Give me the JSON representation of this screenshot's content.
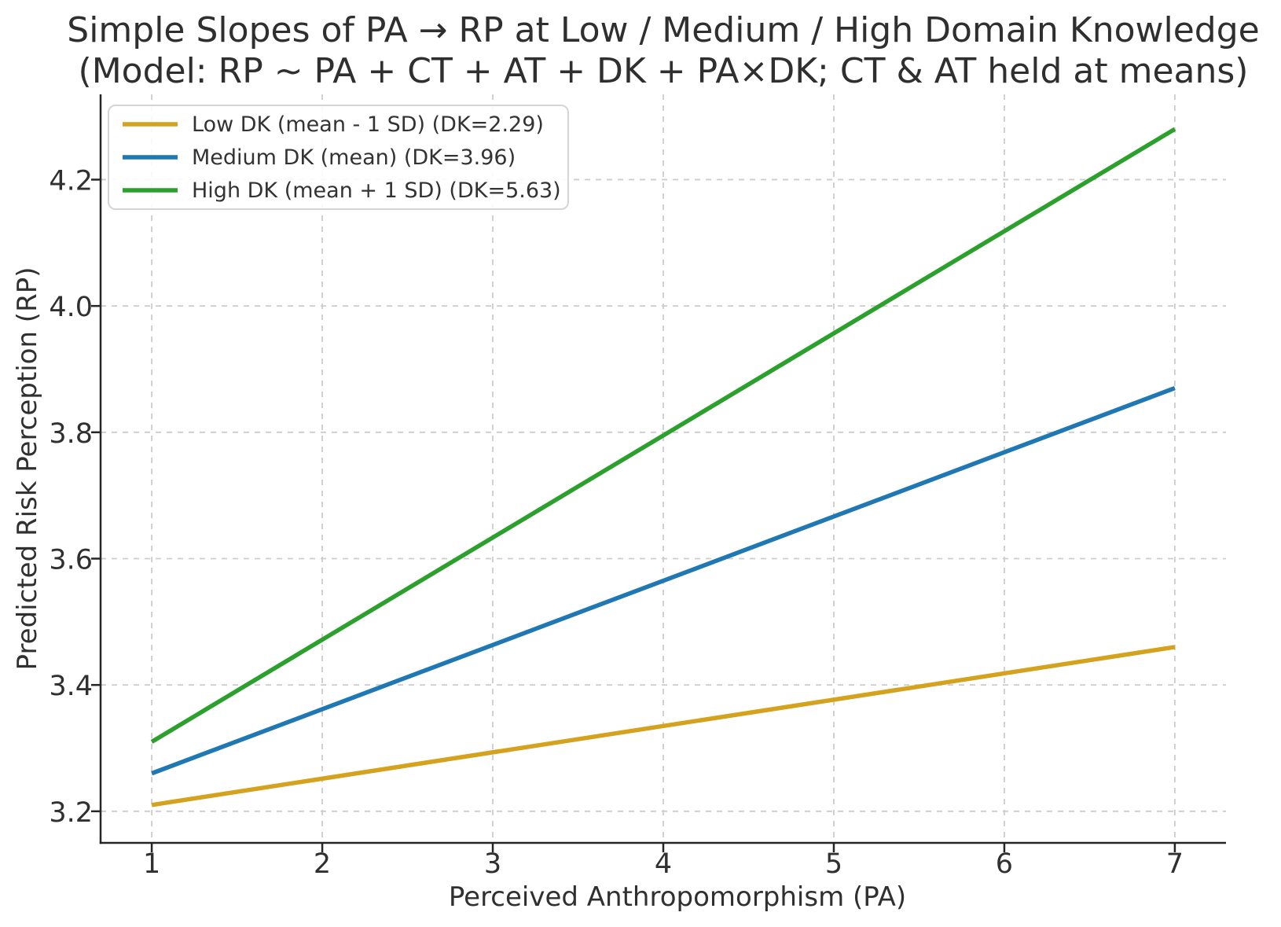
{
  "chart_data": {
    "type": "line",
    "title": "Simple Slopes of PA → RP at Low / Medium / High Domain Knowledge",
    "subtitle": "(Model: RP ~ PA + CT + AT + DK + PA×DK; CT & AT held at means)",
    "xlabel": "Perceived Anthropomorphism (PA)",
    "ylabel": "Predicted Risk Perception (RP)",
    "x": [
      1,
      7
    ],
    "series": [
      {
        "name": "Low DK (mean - 1 SD) (DK=2.29)",
        "color": "#D5A21E",
        "y": [
          3.21,
          3.46
        ]
      },
      {
        "name": "Medium DK (mean) (DK=3.96)",
        "color": "#1F77B4",
        "y": [
          3.26,
          3.87
        ]
      },
      {
        "name": "High DK (mean + 1 SD) (DK=5.63)",
        "color": "#2CA02C",
        "y": [
          3.31,
          4.28
        ]
      }
    ],
    "xticks": [
      "1",
      "2",
      "3",
      "4",
      "5",
      "6",
      "7"
    ],
    "yticks": [
      "3.2",
      "3.4",
      "3.6",
      "3.8",
      "4.0",
      "4.2"
    ],
    "xlim": [
      0.7,
      7.3
    ],
    "ylim": [
      3.15,
      4.335
    ],
    "grid": true,
    "grid_style": "dashed",
    "legend_position": "upper left",
    "colors": {
      "grid": "#cccccc",
      "spine": "#262626",
      "legend_border": "#d5d5d5"
    }
  }
}
